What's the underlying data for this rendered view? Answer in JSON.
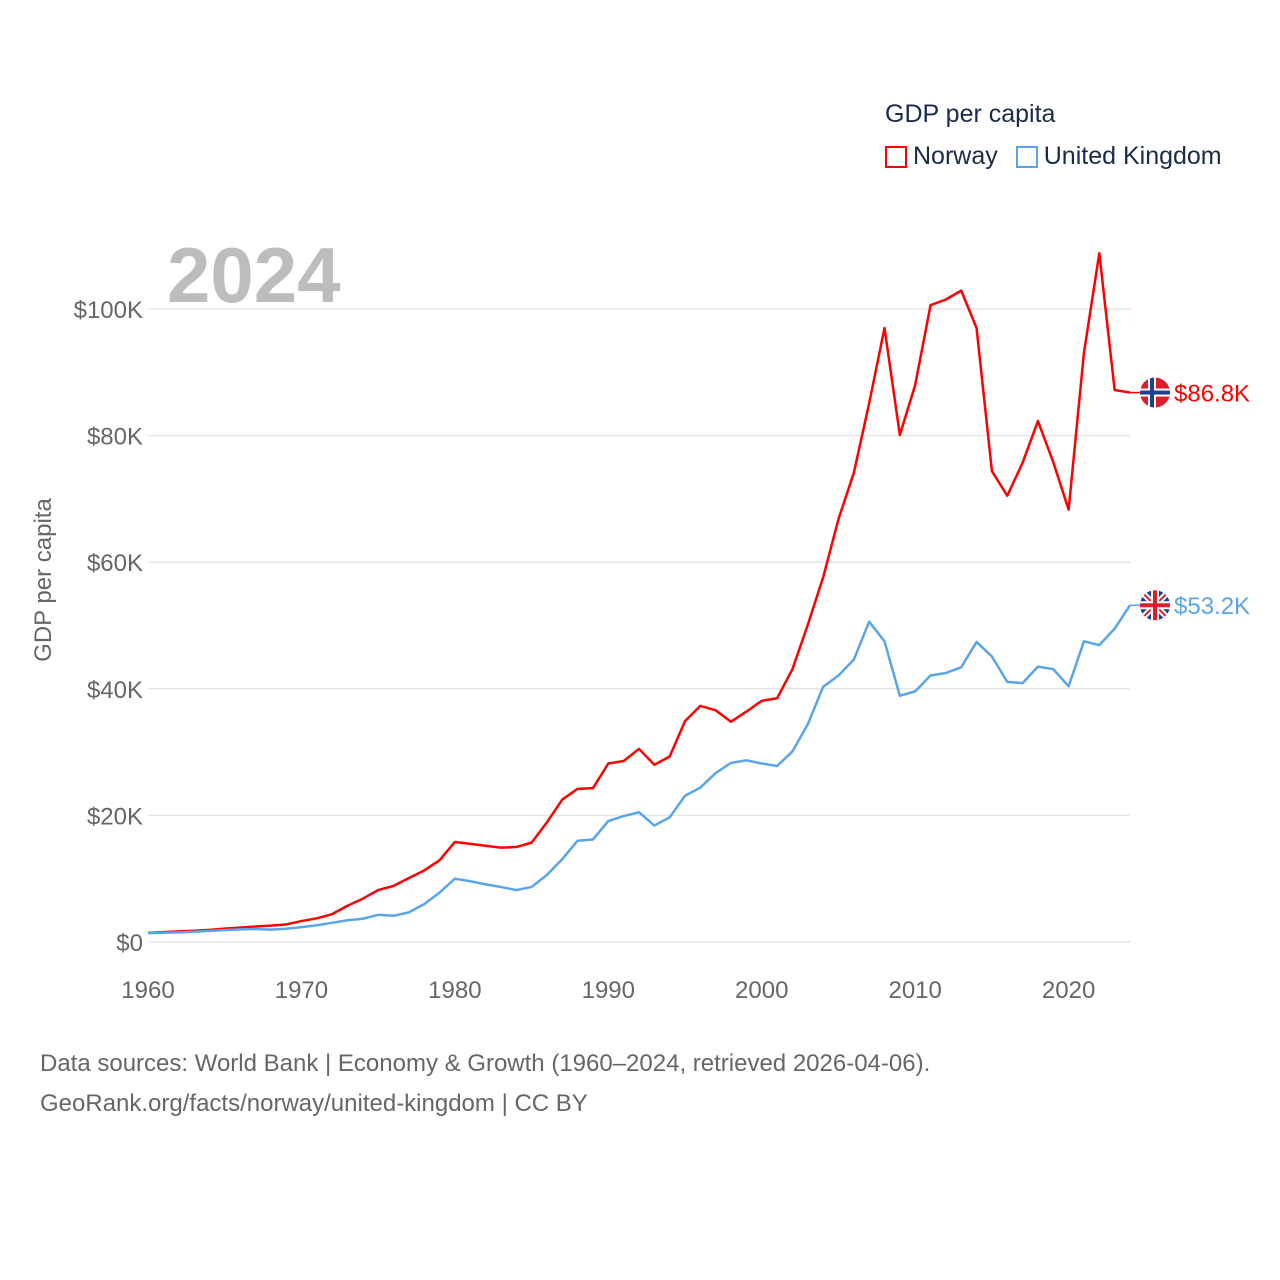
{
  "chart_data": {
    "type": "line",
    "title": "GDP per capita",
    "year_label": "2024",
    "xlabel": "",
    "ylabel": "GDP per capita",
    "xlim": [
      1960,
      2024
    ],
    "ylim": [
      0,
      110000
    ],
    "x_ticks": [
      1960,
      1970,
      1980,
      1990,
      2000,
      2010,
      2020
    ],
    "x_tick_labels": [
      "1960",
      "1970",
      "1980",
      "1990",
      "2000",
      "2010",
      "2020"
    ],
    "y_ticks": [
      0,
      20000,
      40000,
      60000,
      80000,
      100000
    ],
    "y_tick_labels": [
      "$0",
      "$20K",
      "$40K",
      "$60K",
      "$80K",
      "$100K"
    ],
    "grid": true,
    "legend_position": "top-right",
    "x": [
      1960,
      1961,
      1962,
      1963,
      1964,
      1965,
      1966,
      1967,
      1968,
      1969,
      1970,
      1971,
      1972,
      1973,
      1974,
      1975,
      1976,
      1977,
      1978,
      1979,
      1980,
      1981,
      1982,
      1983,
      1984,
      1985,
      1986,
      1987,
      1988,
      1989,
      1990,
      1991,
      1992,
      1993,
      1994,
      1995,
      1996,
      1997,
      1998,
      1999,
      2000,
      2001,
      2002,
      2003,
      2004,
      2005,
      2006,
      2007,
      2008,
      2009,
      2010,
      2011,
      2012,
      2013,
      2014,
      2015,
      2016,
      2017,
      2018,
      2019,
      2020,
      2021,
      2022,
      2023,
      2024
    ],
    "series": [
      {
        "name": "Norway",
        "color": "#ff0000",
        "end_label": "$86.8K",
        "flag": "norway-flag",
        "values": [
          1440,
          1560,
          1670,
          1770,
          1920,
          2110,
          2270,
          2450,
          2580,
          2770,
          3310,
          3740,
          4400,
          5730,
          6840,
          8200,
          8860,
          10100,
          11300,
          12900,
          15800,
          15500,
          15200,
          14900,
          15000,
          15700,
          18900,
          22500,
          24200,
          24300,
          28200,
          28600,
          30500,
          28000,
          29300,
          34900,
          37300,
          36600,
          34800,
          36400,
          38100,
          38500,
          43100,
          50100,
          57600,
          66800,
          74100,
          85100,
          97000,
          80100,
          88000,
          100600,
          101500,
          102900,
          97000,
          74400,
          70500,
          75700,
          82300,
          75800,
          68300,
          93100,
          108800,
          87200,
          86800
        ]
      },
      {
        "name": "United Kingdom",
        "color": "#5aa5ea",
        "end_label": "$53.2K",
        "flag": "uk-flag",
        "values": [
          1400,
          1470,
          1530,
          1610,
          1750,
          1870,
          1990,
          2060,
          1950,
          2100,
          2350,
          2650,
          3030,
          3430,
          3670,
          4300,
          4140,
          4680,
          5980,
          7800,
          10000,
          9600,
          9100,
          8700,
          8200,
          8700,
          10600,
          13100,
          16000,
          16200,
          19100,
          19900,
          20500,
          18400,
          19700,
          23100,
          24400,
          26700,
          28300,
          28700,
          28200,
          27800,
          30100,
          34400,
          40300,
          42100,
          44600,
          50600,
          47500,
          38900,
          39600,
          42100,
          42500,
          43400,
          47400,
          45100,
          41100,
          40900,
          43500,
          43100,
          40400,
          47500,
          46900,
          49500,
          53200
        ]
      }
    ]
  },
  "footer": {
    "line1": "Data sources: World Bank | Economy & Growth (1960–2024, retrieved 2026-04-06).",
    "line2": "GeoRank.org/facts/norway/united-kingdom | CC BY"
  }
}
